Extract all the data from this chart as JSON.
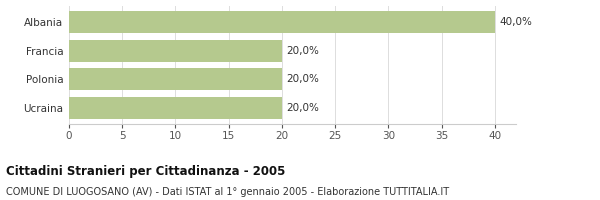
{
  "categories": [
    "Ucraina",
    "Polonia",
    "Francia",
    "Albania"
  ],
  "values": [
    20.0,
    20.0,
    20.0,
    40.0
  ],
  "labels": [
    "20,0%",
    "20,0%",
    "20,0%",
    "40,0%"
  ],
  "bar_color": "#b5c98e",
  "bar_edgecolor": "none",
  "xlim": [
    0,
    42
  ],
  "xticks": [
    0,
    5,
    10,
    15,
    20,
    25,
    30,
    35,
    40
  ],
  "title_bold": "Cittadini Stranieri per Cittadinanza - 2005",
  "subtitle": "COMUNE DI LUOGOSANO (AV) - Dati ISTAT al 1° gennaio 2005 - Elaborazione TUTTITALIA.IT",
  "background_color": "#ffffff",
  "title_fontsize": 8.5,
  "subtitle_fontsize": 7.0,
  "label_fontsize": 7.5,
  "ytick_fontsize": 7.5,
  "xtick_fontsize": 7.5
}
